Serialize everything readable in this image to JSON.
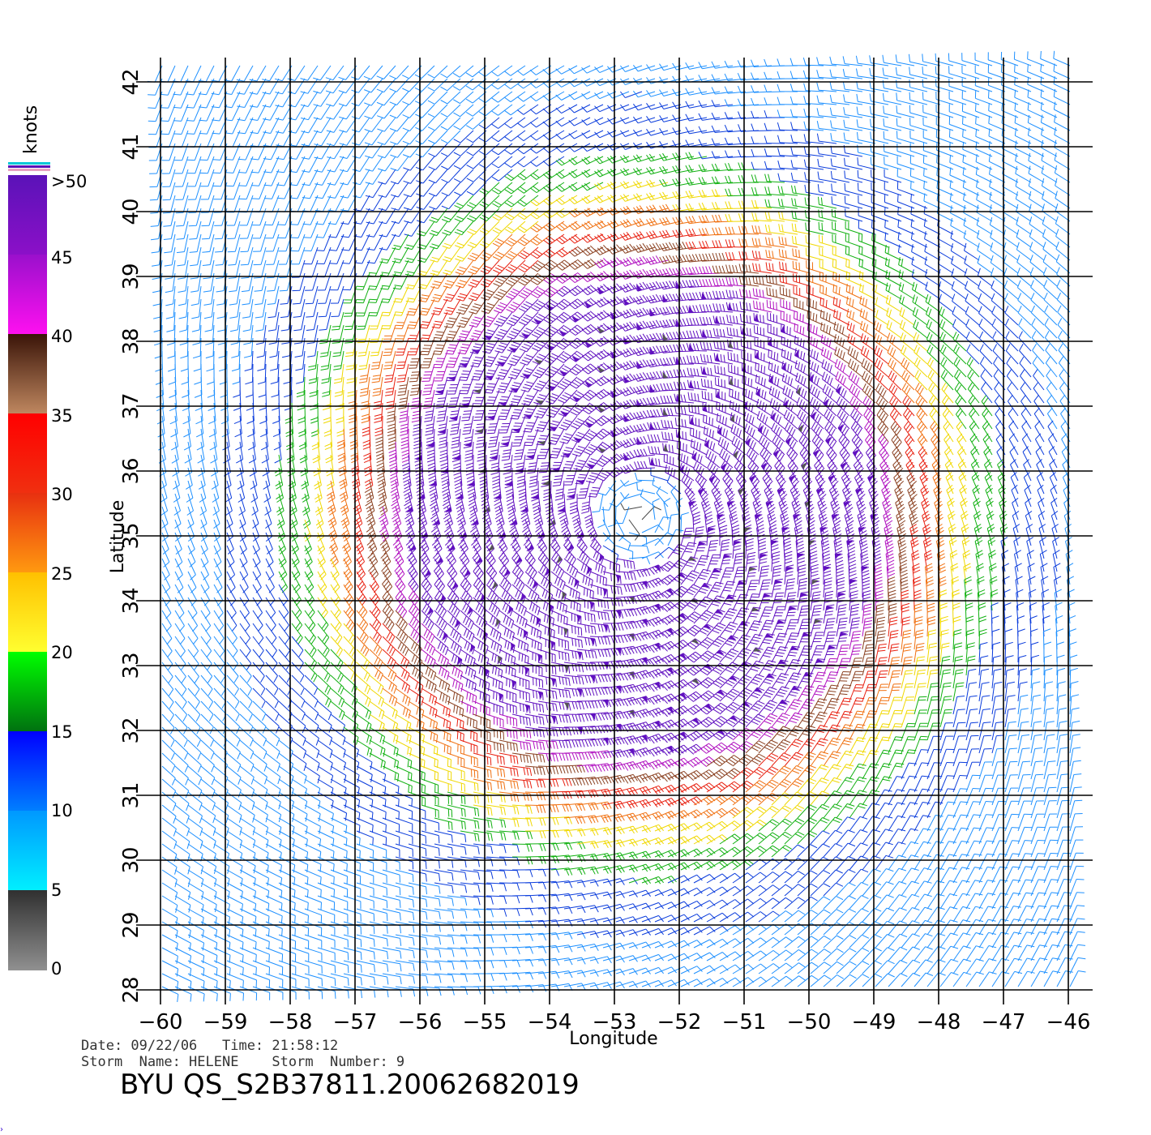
{
  "map": {
    "type": "wind_barbs",
    "lon_range": [
      -60,
      -46
    ],
    "lat_range": [
      28,
      42
    ],
    "lon_ticks": [
      "-60",
      "-59",
      "-58",
      "-57",
      "-56",
      "-55",
      "-54",
      "-53",
      "-52",
      "-51",
      "-50",
      "-49",
      "-48",
      "-47",
      "-46"
    ],
    "lat_ticks": [
      "28",
      "29",
      "30",
      "31",
      "32",
      "33",
      "34",
      "35",
      "36",
      "37",
      "38",
      "39",
      "40",
      "41",
      "42"
    ],
    "xlabel": "Longitude",
    "ylabel": "Latitude",
    "storm_center": {
      "lon": -52.6,
      "lat": 35.3
    }
  },
  "colorbar": {
    "unit": "knots",
    "labels": [
      ">50",
      "45",
      "40",
      "35",
      "30",
      "25",
      "20",
      "15",
      "10",
      "5",
      "0"
    ],
    "segments": [
      {
        "from": 45,
        "to": 50,
        "top": "#5a12b8",
        "bottom": "#8c10c8"
      },
      {
        "from": 40,
        "to": 45,
        "top": "#9a10cc",
        "bottom": "#ff10f0"
      },
      {
        "from": 35,
        "to": 40,
        "top": "#3a1408",
        "bottom": "#c08860"
      },
      {
        "from": 30,
        "to": 35,
        "top": "#ff0000",
        "bottom": "#f03010"
      },
      {
        "from": 25,
        "to": 30,
        "top": "#e83010",
        "bottom": "#ff9a10"
      },
      {
        "from": 20,
        "to": 25,
        "top": "#ffc000",
        "bottom": "#ffff30"
      },
      {
        "from": 15,
        "to": 20,
        "top": "#00ff00",
        "bottom": "#007010"
      },
      {
        "from": 10,
        "to": 15,
        "top": "#0000ff",
        "bottom": "#0080ff"
      },
      {
        "from": 5,
        "to": 10,
        "top": "#0098ff",
        "bottom": "#00f0ff"
      },
      {
        "from": 0,
        "to": 5,
        "top": "#303030",
        "bottom": "#909090"
      }
    ]
  },
  "footer": {
    "line1": "Date: 09/22/06   Time: 21:58:12",
    "line2": "Storm  Name: HELENE    Storm  Number: 9",
    "file_id": "BYU  QS_S2B37811.20062682019"
  }
}
